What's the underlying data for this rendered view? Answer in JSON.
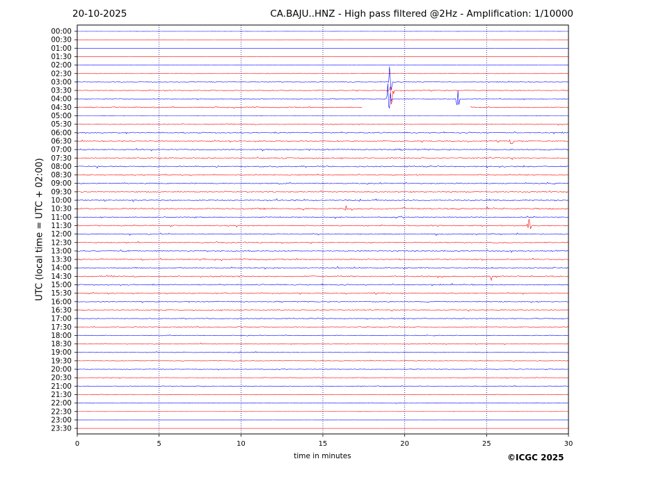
{
  "header": {
    "date": "20-10-2025",
    "title": "CA.BAJU..HNZ - High pass filtered @2Hz - Amplification: 1/10000"
  },
  "copyright": "©ICGC 2025",
  "colors": {
    "odd_trace": "#ff0000",
    "even_trace": "#0000ff",
    "frame": "#000000",
    "grid": "#000080"
  },
  "chart_data": {
    "type": "line",
    "xlabel": "time in minutes",
    "ylabel": "UTC (local time = UTC + 02:00)",
    "xlim": [
      0,
      30
    ],
    "x_ticks": [
      0,
      5,
      10,
      15,
      20,
      25,
      30
    ],
    "grid": "vertical dotted at x ticks",
    "rows": [
      "00:00",
      "00:30",
      "01:00",
      "01:30",
      "02:00",
      "02:30",
      "03:00",
      "03:30",
      "04:00",
      "04:30",
      "05:00",
      "05:30",
      "06:00",
      "06:30",
      "07:00",
      "07:30",
      "08:00",
      "08:30",
      "09:00",
      "09:30",
      "10:00",
      "10:30",
      "11:00",
      "11:30",
      "12:00",
      "12:30",
      "13:00",
      "13:30",
      "14:00",
      "14:30",
      "15:00",
      "15:30",
      "16:00",
      "16:30",
      "17:00",
      "17:30",
      "18:00",
      "18:30",
      "19:00",
      "19:30",
      "20:00",
      "20:30",
      "21:00",
      "21:30",
      "22:00",
      "22:30",
      "23:00",
      "23:30"
    ],
    "row_activity": [
      0.02,
      0.02,
      0.02,
      0.02,
      0.02,
      0.12,
      0.25,
      0.3,
      0.3,
      0.35,
      0.02,
      0.35,
      0.45,
      0.4,
      0.5,
      0.45,
      0.5,
      0.45,
      0.45,
      0.4,
      0.5,
      0.6,
      0.4,
      0.45,
      0.4,
      0.4,
      0.45,
      0.45,
      0.45,
      0.5,
      0.45,
      0.4,
      0.4,
      0.35,
      0.35,
      0.35,
      0.3,
      0.3,
      0.3,
      0.25,
      0.25,
      0.25,
      0.25,
      0.2,
      0.2,
      0.02,
      0.02,
      0.02
    ],
    "row_gaps": [
      {
        "row": "04:30",
        "from": 17.4,
        "to": 24.0
      },
      {
        "row": "04:30",
        "from": 23.4,
        "to": 23.9
      }
    ],
    "events": [
      {
        "row": "03:00",
        "minute": 19.1,
        "amplitude": 3.2
      },
      {
        "row": "03:30",
        "minute": 19.2,
        "amplitude": 2.5
      },
      {
        "row": "04:00",
        "minute": 19.05,
        "amplitude": 4.5
      },
      {
        "row": "04:00",
        "minute": 23.25,
        "amplitude": 2.2
      },
      {
        "row": "06:30",
        "minute": 26.5,
        "amplitude": 0.6
      },
      {
        "row": "10:30",
        "minute": 16.4,
        "amplitude": 0.8
      },
      {
        "row": "10:30",
        "minute": 19.9,
        "amplitude": 0.9
      },
      {
        "row": "11:30",
        "minute": 27.6,
        "amplitude": 0.9
      },
      {
        "row": "14:30",
        "minute": 25.3,
        "amplitude": 0.6
      }
    ]
  }
}
